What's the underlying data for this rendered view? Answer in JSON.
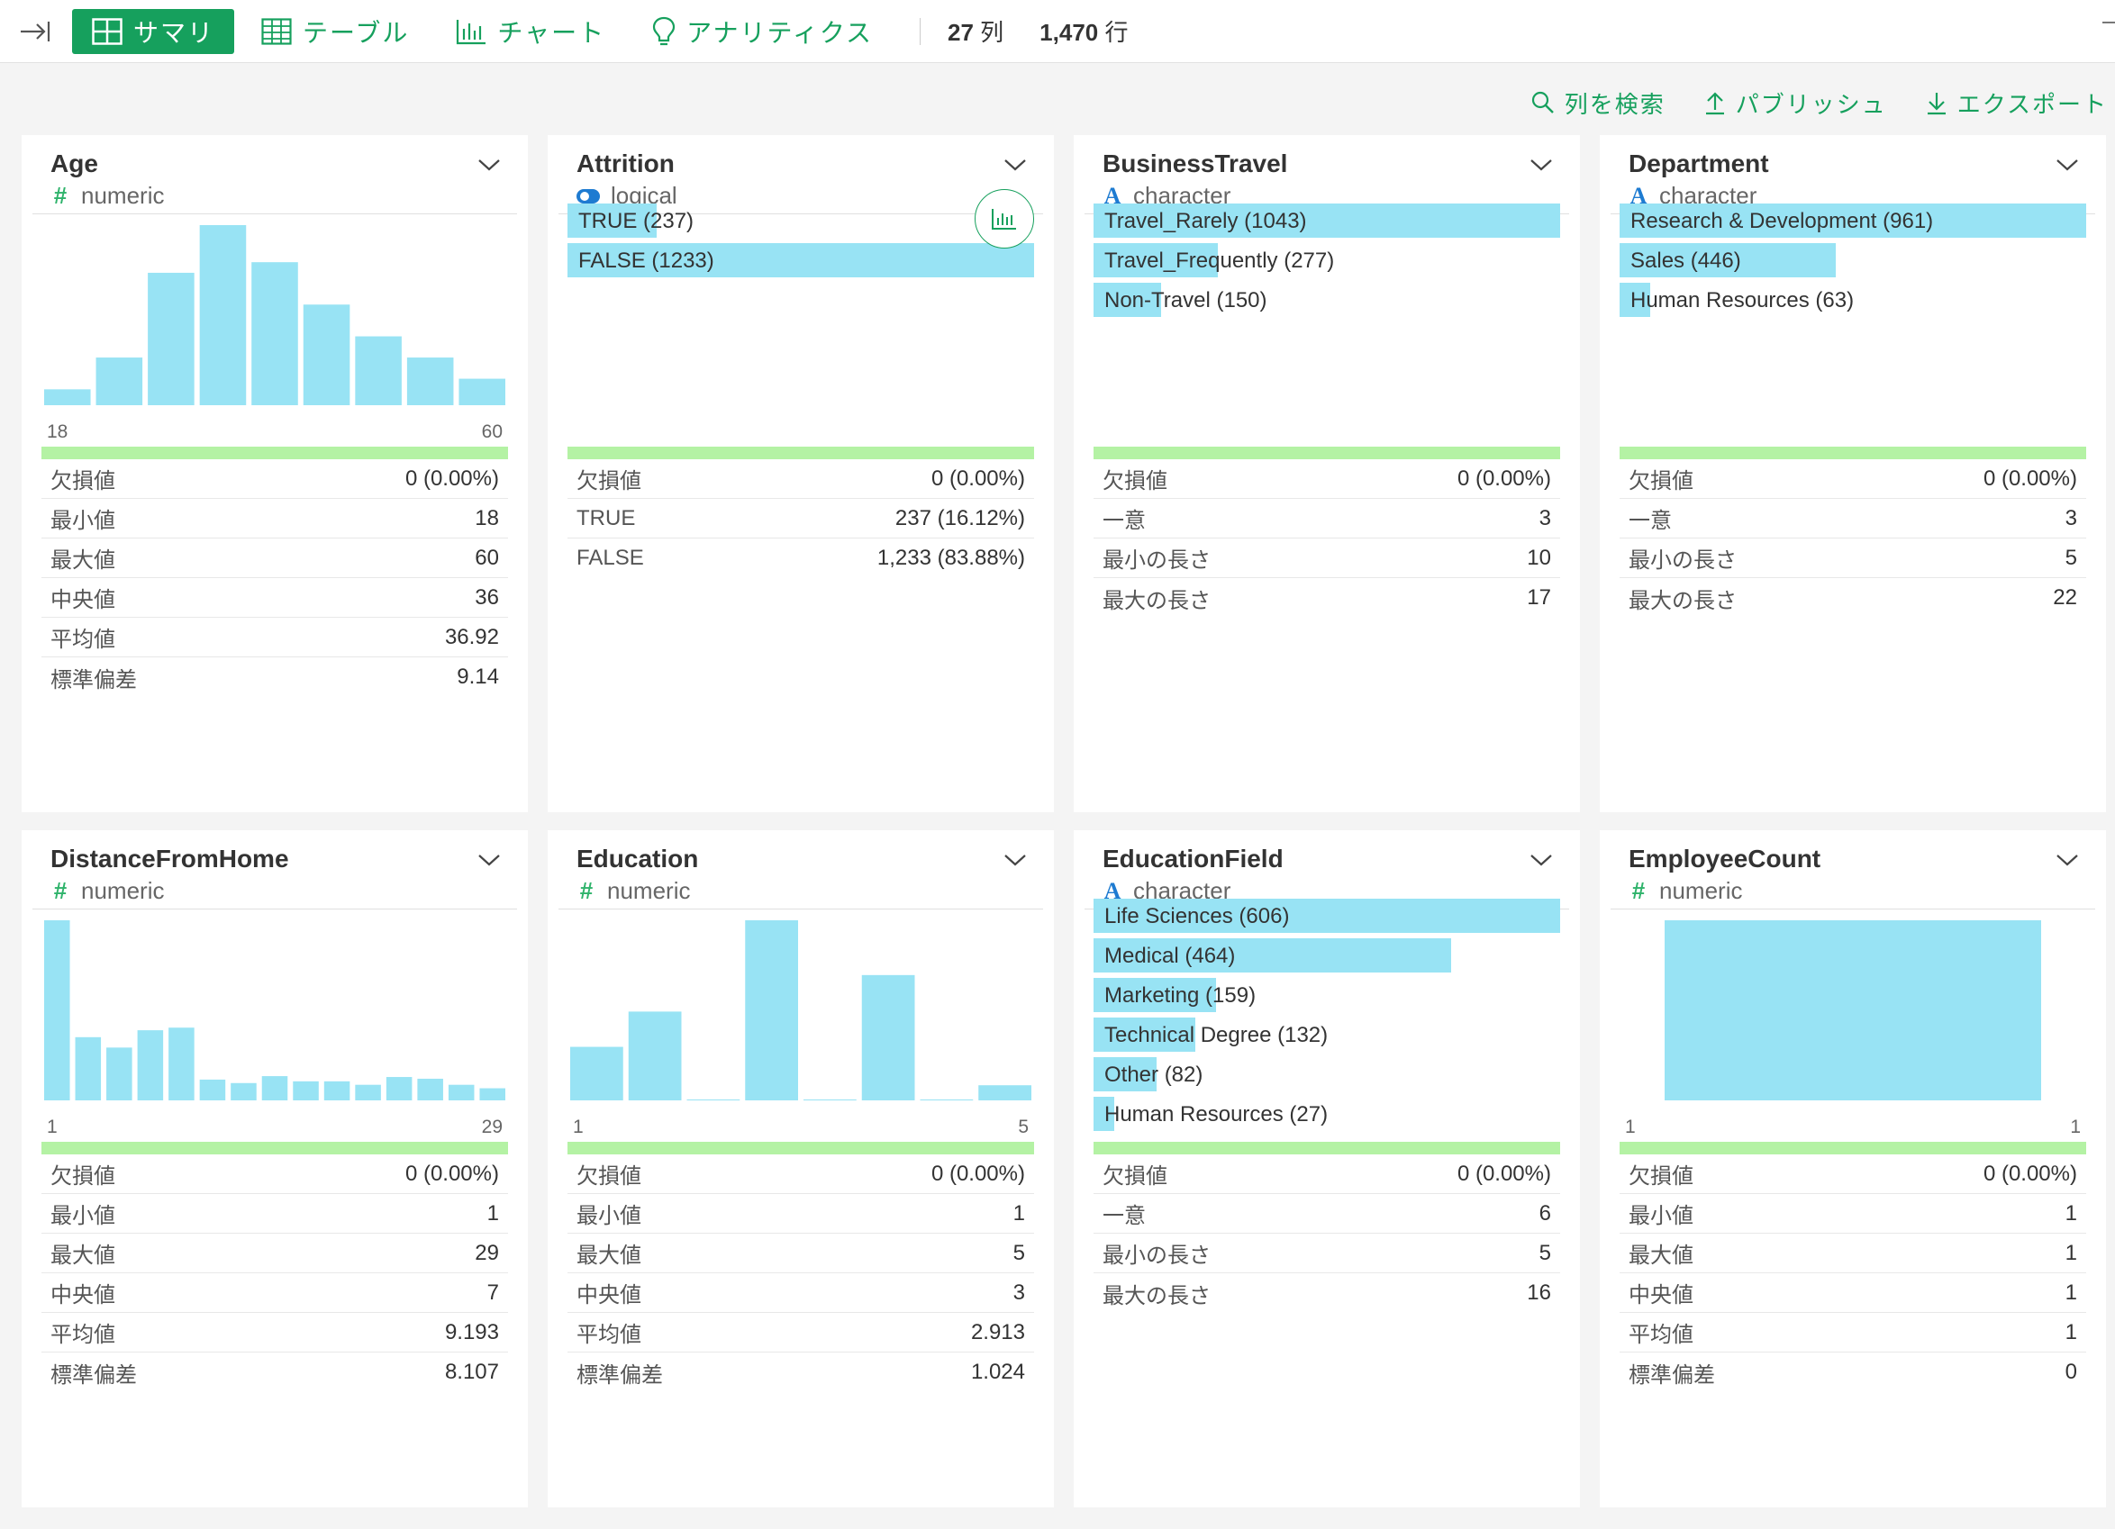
{
  "toolbar": {
    "tabs": [
      {
        "label": "サマリ",
        "icon": "grid-icon",
        "active": true
      },
      {
        "label": "テーブル",
        "icon": "table-icon",
        "active": false
      },
      {
        "label": "チャート",
        "icon": "bar-chart-icon",
        "active": false
      },
      {
        "label": "アナリティクス",
        "icon": "lightbulb-icon",
        "active": false
      }
    ],
    "columns_count": "27",
    "columns_unit": "列",
    "rows_count": "1,470",
    "rows_unit": "行"
  },
  "actions": {
    "search_columns": "列を検索",
    "publish": "パブリッシュ",
    "export": "エクスポート"
  },
  "colors": {
    "accent": "#16a05d",
    "bar": "#98e3f4",
    "quality": "#b4f2a4"
  },
  "cards": [
    {
      "name": "Age",
      "type": "numeric",
      "hist": [
        3,
        9,
        25,
        34,
        27,
        19,
        13,
        9,
        5
      ],
      "axis_min": "18",
      "axis_max": "60",
      "stats": [
        {
          "label": "欠損値",
          "value": "0 (0.00%)"
        },
        {
          "label": "最小値",
          "value": "18"
        },
        {
          "label": "最大値",
          "value": "60"
        },
        {
          "label": "中央値",
          "value": "36"
        },
        {
          "label": "平均値",
          "value": "36.92"
        },
        {
          "label": "標準偏差",
          "value": "9.14"
        }
      ]
    },
    {
      "name": "Attrition",
      "type": "logical",
      "bars": [
        {
          "label": "TRUE (237)",
          "ratio": 0.192
        },
        {
          "label": "FALSE (1233)",
          "ratio": 1.0
        }
      ],
      "stats": [
        {
          "label": "欠損値",
          "value": "0 (0.00%)"
        },
        {
          "label": "TRUE",
          "value": "237 (16.12%)"
        },
        {
          "label": "FALSE",
          "value": "1,233 (83.88%)"
        }
      ]
    },
    {
      "name": "BusinessTravel",
      "type": "character",
      "bars": [
        {
          "label": "Travel_Rarely (1043)",
          "ratio": 1.0
        },
        {
          "label": "Travel_Frequently (277)",
          "ratio": 0.266
        },
        {
          "label": "Non-Travel (150)",
          "ratio": 0.144
        }
      ],
      "stats": [
        {
          "label": "欠損値",
          "value": "0 (0.00%)"
        },
        {
          "label": "一意",
          "value": "3"
        },
        {
          "label": "最小の長さ",
          "value": "10"
        },
        {
          "label": "最大の長さ",
          "value": "17"
        }
      ]
    },
    {
      "name": "Department",
      "type": "character",
      "bars": [
        {
          "label": "Research & Development (961)",
          "ratio": 1.0
        },
        {
          "label": "Sales (446)",
          "ratio": 0.464
        },
        {
          "label": "Human Resources (63)",
          "ratio": 0.066
        }
      ],
      "stats": [
        {
          "label": "欠損値",
          "value": "0 (0.00%)"
        },
        {
          "label": "一意",
          "value": "3"
        },
        {
          "label": "最小の長さ",
          "value": "5"
        },
        {
          "label": "最大の長さ",
          "value": "22"
        }
      ]
    },
    {
      "name": "DistanceFromHome",
      "type": "numeric",
      "hist": [
        208,
        73,
        61,
        81,
        84,
        24,
        20,
        28,
        22,
        22,
        18,
        27,
        25,
        18,
        14
      ],
      "axis_min": "1",
      "axis_max": "29",
      "stats": [
        {
          "label": "欠損値",
          "value": "0 (0.00%)"
        },
        {
          "label": "最小値",
          "value": "1"
        },
        {
          "label": "最大値",
          "value": "29"
        },
        {
          "label": "中央値",
          "value": "7"
        },
        {
          "label": "平均値",
          "value": "9.193"
        },
        {
          "label": "標準偏差",
          "value": "8.107"
        }
      ]
    },
    {
      "name": "Education",
      "type": "numeric",
      "hist": [
        170,
        282,
        0,
        572,
        0,
        398,
        0,
        48
      ],
      "axis_min": "1",
      "axis_max": "5",
      "stats": [
        {
          "label": "欠損値",
          "value": "0 (0.00%)"
        },
        {
          "label": "最小値",
          "value": "1"
        },
        {
          "label": "最大値",
          "value": "5"
        },
        {
          "label": "中央値",
          "value": "3"
        },
        {
          "label": "平均値",
          "value": "2.913"
        },
        {
          "label": "標準偏差",
          "value": "1.024"
        }
      ]
    },
    {
      "name": "EducationField",
      "type": "character",
      "bars": [
        {
          "label": "Life Sciences (606)",
          "ratio": 1.0
        },
        {
          "label": "Medical (464)",
          "ratio": 0.766
        },
        {
          "label": "Marketing (159)",
          "ratio": 0.262
        },
        {
          "label": "Technical Degree (132)",
          "ratio": 0.218
        },
        {
          "label": "Other (82)",
          "ratio": 0.135
        },
        {
          "label": "Human Resources (27)",
          "ratio": 0.045
        }
      ],
      "stats": [
        {
          "label": "欠損値",
          "value": "0 (0.00%)"
        },
        {
          "label": "一意",
          "value": "6"
        },
        {
          "label": "最小の長さ",
          "value": "5"
        },
        {
          "label": "最大の長さ",
          "value": "16"
        }
      ]
    },
    {
      "name": "EmployeeCount",
      "type": "numeric",
      "hist": [
        1470
      ],
      "axis_min": "1",
      "axis_max": "1",
      "stats": [
        {
          "label": "欠損値",
          "value": "0 (0.00%)"
        },
        {
          "label": "最小値",
          "value": "1"
        },
        {
          "label": "最大値",
          "value": "1"
        },
        {
          "label": "中央値",
          "value": "1"
        },
        {
          "label": "平均値",
          "value": "1"
        },
        {
          "label": "標準偏差",
          "value": "0"
        }
      ]
    }
  ]
}
